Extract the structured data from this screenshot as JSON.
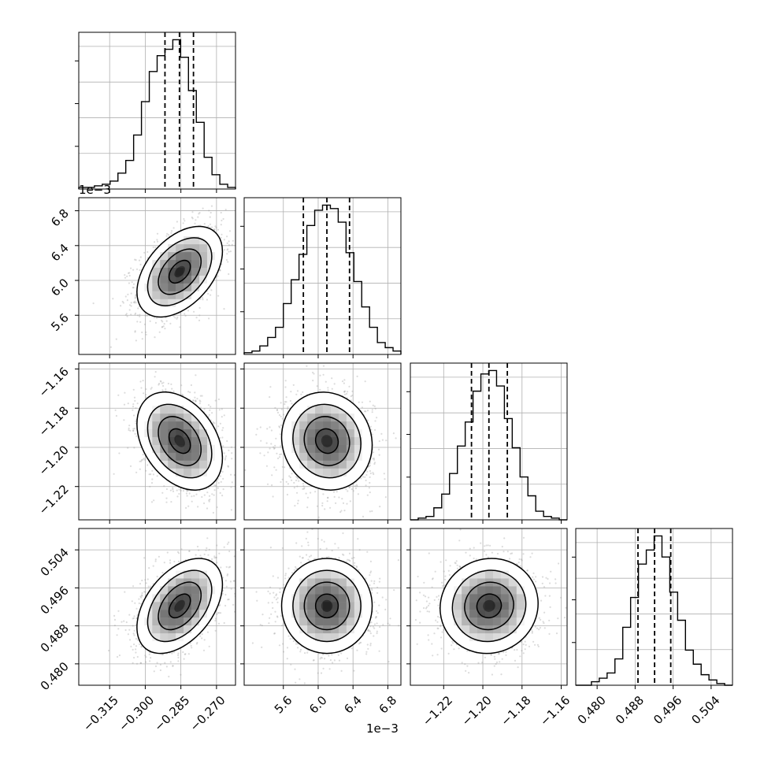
{
  "chart_data": {
    "type": "corner",
    "parameters": [
      {
        "index": 0,
        "range": [
          -0.328,
          -0.262
        ],
        "ticks": [
          -0.315,
          -0.3,
          -0.285,
          -0.27
        ],
        "tick_labels": [
          "−0.315",
          "−0.300",
          "−0.285",
          "−0.270"
        ]
      },
      {
        "index": 1,
        "range": [
          5.15,
          6.95
        ],
        "ticks": [
          5.6,
          6.0,
          6.4,
          6.8
        ],
        "tick_labels": [
          "5.6",
          "6.0",
          "6.4",
          "6.8"
        ],
        "offset_text": "1e−3"
      },
      {
        "index": 2,
        "range": [
          -1.237,
          -1.157
        ],
        "ticks": [
          -1.22,
          -1.2,
          -1.18,
          -1.16
        ],
        "tick_labels": [
          "−1.22",
          "−1.20",
          "−1.18",
          "−1.16"
        ]
      },
      {
        "index": 3,
        "range": [
          0.4755,
          0.5085
        ],
        "ticks": [
          0.48,
          0.488,
          0.496,
          0.504
        ],
        "tick_labels": [
          "0.480",
          "0.488",
          "0.496",
          "0.504"
        ]
      }
    ],
    "histograms": [
      {
        "param": 0,
        "quantiles": [
          -0.2917,
          -0.2856,
          -0.2797
        ],
        "bin_edges": [
          -0.328,
          -0.3247,
          -0.3214,
          -0.3181,
          -0.3148,
          -0.3115,
          -0.3082,
          -0.3049,
          -0.3016,
          -0.2983,
          -0.295,
          -0.2917,
          -0.2884,
          -0.2851,
          -0.2818,
          -0.2785,
          -0.2752,
          -0.2719,
          -0.2686,
          -0.2653,
          -0.262
        ],
        "counts": [
          1,
          1,
          2,
          3,
          5,
          10,
          18,
          34,
          55,
          74,
          84,
          88,
          94,
          83,
          62,
          42,
          20,
          9,
          3,
          1
        ]
      },
      {
        "param": 1,
        "quantiles": [
          5.83,
          6.1,
          6.36
        ],
        "bin_edges": [
          5.15,
          5.24,
          5.33,
          5.42,
          5.51,
          5.6,
          5.69,
          5.78,
          5.87,
          5.96,
          6.05,
          6.14,
          6.23,
          6.32,
          6.41,
          6.5,
          6.59,
          6.68,
          6.77,
          6.86,
          6.95
        ],
        "counts": [
          1,
          2,
          5,
          10,
          16,
          30,
          44,
          59,
          76,
          85,
          88,
          86,
          78,
          60,
          43,
          28,
          16,
          7,
          4,
          2
        ]
      },
      {
        "param": 2,
        "quantiles": [
          -1.2058,
          -1.1969,
          -1.1875
        ],
        "bin_edges": [
          -1.237,
          -1.233,
          -1.229,
          -1.225,
          -1.221,
          -1.217,
          -1.213,
          -1.209,
          -1.205,
          -1.201,
          -1.197,
          -1.193,
          -1.189,
          -1.185,
          -1.181,
          -1.177,
          -1.173,
          -1.169,
          -1.165,
          -1.161,
          -1.157
        ],
        "counts": [
          0,
          1,
          2,
          7,
          15,
          27,
          43,
          57,
          75,
          85,
          87,
          78,
          59,
          42,
          25,
          14,
          5,
          2,
          1,
          0
        ]
      },
      {
        "param": 3,
        "quantiles": [
          0.4886,
          0.4921,
          0.4955
        ],
        "bin_edges": [
          0.4755,
          0.47715,
          0.4788,
          0.48045,
          0.4821,
          0.48375,
          0.4854,
          0.48705,
          0.4887,
          0.49035,
          0.492,
          0.49365,
          0.4953,
          0.49695,
          0.4986,
          0.50025,
          0.5019,
          0.50355,
          0.5052,
          0.50685,
          0.5085
        ],
        "counts": [
          0,
          0,
          2,
          4,
          7,
          15,
          33,
          50,
          69,
          77,
          85,
          73,
          53,
          37,
          20,
          12,
          6,
          3,
          1,
          0
        ]
      }
    ],
    "pairs": [
      {
        "x_param": 0,
        "y_param": 1,
        "center": [
          -0.2855,
          6.1
        ],
        "sigma": [
          0.009,
          0.26
        ],
        "rho": 0.45
      },
      {
        "x_param": 0,
        "y_param": 2,
        "center": [
          -0.2855,
          -1.1968
        ],
        "sigma": [
          0.009,
          0.0125
        ],
        "rho": -0.35
      },
      {
        "x_param": 1,
        "y_param": 2,
        "center": [
          6.1,
          -1.1968
        ],
        "sigma": [
          0.26,
          0.0125
        ],
        "rho": -0.08
      },
      {
        "x_param": 0,
        "y_param": 3,
        "center": [
          -0.2855,
          0.4922
        ],
        "sigma": [
          0.009,
          0.005
        ],
        "rho": 0.45
      },
      {
        "x_param": 1,
        "y_param": 3,
        "center": [
          6.1,
          0.4922
        ],
        "sigma": [
          0.26,
          0.005
        ],
        "rho": 0.0
      },
      {
        "x_param": 2,
        "y_param": 3,
        "center": [
          -1.1968,
          0.4922
        ],
        "sigma": [
          0.0125,
          0.005
        ],
        "rho": 0.05
      }
    ],
    "contour_levels_sigma": [
      0.5,
      1.0,
      1.5,
      2.0
    ],
    "grid": true,
    "colors": {
      "hist": "#000000",
      "contour": "#000000",
      "scatter": "#9a9a9a",
      "grid": "#b0b0b0"
    }
  }
}
